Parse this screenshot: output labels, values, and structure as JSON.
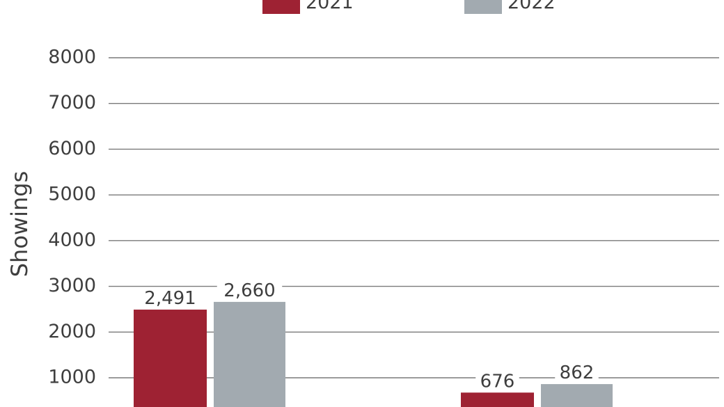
{
  "chart_data": {
    "type": "bar",
    "title": "",
    "xlabel": "",
    "ylabel": "Showings",
    "categories": [
      "",
      ""
    ],
    "ylim": [
      0,
      8000
    ],
    "yticks": [
      1000,
      2000,
      3000,
      4000,
      5000,
      6000,
      7000,
      8000
    ],
    "grid": true,
    "legend_position": "top",
    "series": [
      {
        "name": "2021",
        "color": "#9e2233",
        "values": [
          2491,
          676
        ],
        "labels": [
          "2,491",
          "676"
        ]
      },
      {
        "name": "2022",
        "color": "#a2aab0",
        "values": [
          2660,
          862
        ],
        "labels": [
          "2,660",
          "862"
        ]
      }
    ]
  }
}
